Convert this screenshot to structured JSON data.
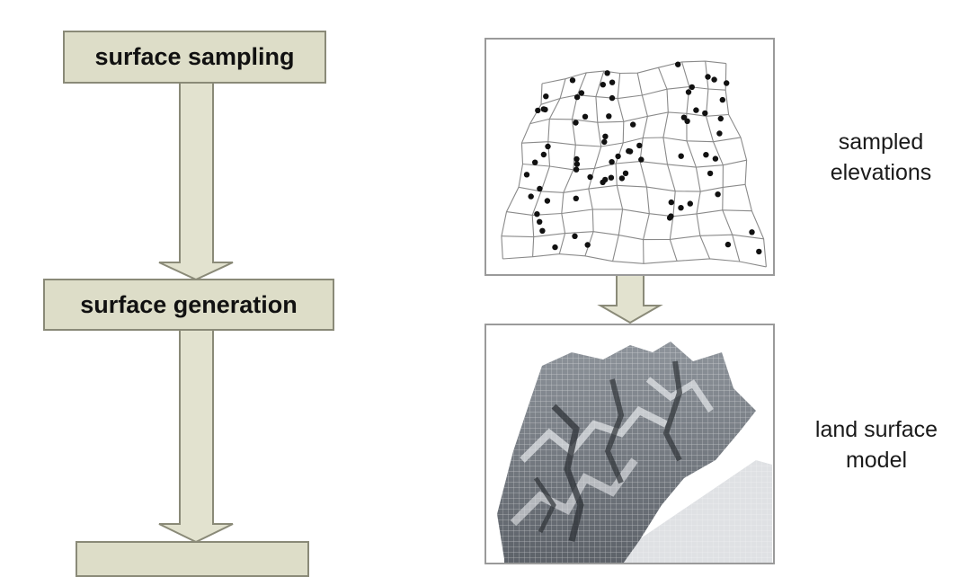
{
  "flow_steps": [
    {
      "label": "surface sampling"
    },
    {
      "label": "surface generation"
    },
    {
      "label": ""
    }
  ],
  "captions": {
    "sampled_elevations": "sampled\nelevations",
    "land_surface_model": "land surface\nmodel"
  },
  "colors": {
    "box_fill": "#ddddc8",
    "box_border": "#8a8a78",
    "arrow_fill": "#e2e2cf",
    "arrow_border": "#8a8a78",
    "terrain_dark": "#3e4348",
    "terrain_light": "#d9dce0"
  }
}
